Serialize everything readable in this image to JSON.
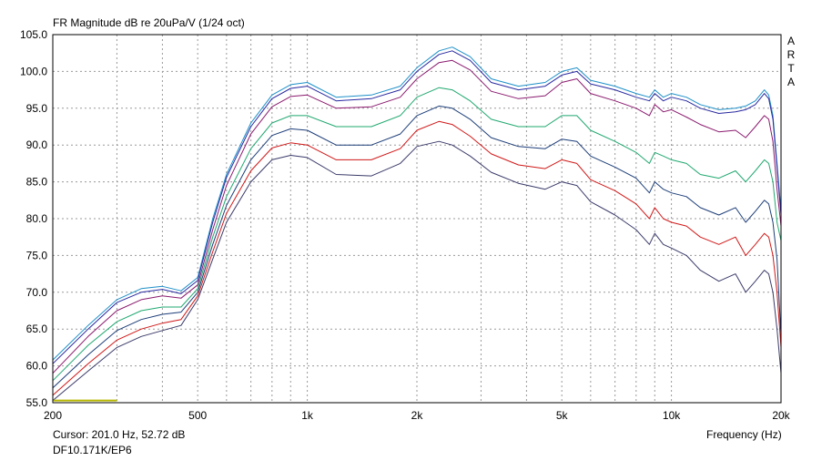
{
  "window": {
    "title": "FR Magnitude dB re 20uPa/V (1/24 oct)",
    "brand_letters": [
      "A",
      "R",
      "T",
      "A"
    ],
    "cursor_readout": "Cursor: 201.0 Hz, 52.72 dB",
    "device_label": "DF10.171K/EP6"
  },
  "chart_data": {
    "type": "line",
    "title": "FR Magnitude dB re 20uPa/V (1/24 oct)",
    "xlabel": "Frequency (Hz)",
    "ylabel": "",
    "x_scale": "log",
    "xlim": [
      200,
      20000
    ],
    "ylim": [
      55,
      105
    ],
    "grid": true,
    "x_tick_labels": [
      {
        "value": 200,
        "label": "200"
      },
      {
        "value": 500,
        "label": "500"
      },
      {
        "value": 1000,
        "label": "1k"
      },
      {
        "value": 2000,
        "label": "2k"
      },
      {
        "value": 5000,
        "label": "5k"
      },
      {
        "value": 10000,
        "label": "10k"
      },
      {
        "value": 20000,
        "label": "20k"
      }
    ],
    "x_minor_grid": [
      300,
      400,
      600,
      700,
      800,
      900,
      3000,
      4000,
      6000,
      7000,
      8000,
      9000
    ],
    "y_ticks": [
      55,
      60,
      65,
      70,
      75,
      80,
      85,
      90,
      95,
      100,
      105
    ],
    "y_tick_labels": [
      "55.0",
      "60.0",
      "65.0",
      "70.0",
      "75.0",
      "80.0",
      "85.0",
      "90.0",
      "95.0",
      "100.0",
      "105.0"
    ],
    "cursor_marker": {
      "x_start": 201,
      "x_end": 300,
      "y": 55.3,
      "color": "#b8b800"
    },
    "x": [
      200,
      250,
      300,
      350,
      400,
      450,
      500,
      550,
      600,
      700,
      800,
      900,
      1000,
      1200,
      1500,
      1800,
      2000,
      2300,
      2500,
      2800,
      3200,
      3800,
      4500,
      5000,
      5500,
      6000,
      7000,
      8000,
      8700,
      9000,
      9500,
      10000,
      11000,
      12000,
      13500,
      15000,
      16000,
      17000,
      18000,
      18500,
      19000,
      19500,
      20000
    ],
    "series": [
      {
        "color": "#1e90c8",
        "values": [
          60.8,
          65.5,
          69.0,
          70.5,
          70.8,
          70.2,
          72.0,
          80.0,
          86.0,
          93.0,
          96.8,
          98.2,
          98.5,
          96.5,
          96.8,
          98.0,
          100.5,
          102.8,
          103.3,
          102.0,
          99.0,
          98.0,
          98.5,
          100.0,
          100.5,
          98.8,
          98.0,
          97.0,
          96.5,
          97.5,
          96.5,
          97.0,
          96.5,
          95.5,
          94.8,
          95.0,
          95.3,
          96.0,
          97.5,
          96.8,
          94.0,
          87.5,
          81.0
        ]
      },
      {
        "color": "#2828a0",
        "values": [
          60.3,
          65.0,
          68.6,
          70.0,
          70.4,
          69.8,
          71.6,
          79.5,
          85.6,
          92.5,
          96.3,
          97.7,
          98.0,
          96.0,
          96.3,
          97.5,
          100.0,
          102.3,
          102.8,
          101.5,
          98.5,
          97.5,
          98.0,
          99.5,
          100.0,
          98.3,
          97.5,
          96.5,
          96.0,
          97.0,
          96.0,
          96.5,
          96.0,
          95.0,
          94.3,
          94.5,
          94.8,
          95.5,
          97.0,
          96.3,
          93.5,
          87.0,
          80.5
        ]
      },
      {
        "color": "#8a1a6e",
        "values": [
          59.0,
          64.0,
          67.5,
          69.0,
          69.5,
          69.2,
          71.0,
          78.5,
          84.5,
          91.5,
          95.2,
          96.6,
          96.8,
          95.0,
          95.2,
          96.5,
          99.0,
          101.2,
          101.5,
          100.2,
          97.3,
          96.3,
          96.7,
          98.5,
          99.0,
          97.0,
          96.0,
          95.0,
          94.0,
          95.5,
          94.5,
          94.8,
          93.8,
          92.8,
          91.8,
          92.0,
          91.0,
          92.5,
          94.0,
          93.5,
          90.5,
          84.0,
          79.0
        ]
      },
      {
        "color": "#20a870",
        "values": [
          58.0,
          62.8,
          66.0,
          67.5,
          68.0,
          68.0,
          70.5,
          77.5,
          83.0,
          89.5,
          93.0,
          94.0,
          94.0,
          92.5,
          92.5,
          94.0,
          96.5,
          97.8,
          97.5,
          96.0,
          93.5,
          92.5,
          92.5,
          94.0,
          94.0,
          92.0,
          90.5,
          89.0,
          87.5,
          89.0,
          88.5,
          88.0,
          87.5,
          86.0,
          85.5,
          86.5,
          85.0,
          86.5,
          88.0,
          87.5,
          85.0,
          79.5,
          77.0
        ]
      },
      {
        "color": "#1c3d78",
        "values": [
          57.0,
          61.5,
          64.8,
          66.3,
          67.0,
          67.3,
          70.0,
          76.5,
          81.8,
          88.0,
          91.3,
          92.2,
          92.0,
          90.0,
          90.0,
          91.5,
          94.0,
          95.3,
          95.0,
          93.5,
          91.0,
          89.8,
          89.5,
          90.8,
          90.5,
          88.5,
          87.0,
          85.5,
          83.5,
          85.0,
          84.0,
          83.5,
          83.0,
          81.5,
          80.5,
          81.5,
          79.5,
          81.0,
          82.5,
          82.0,
          79.5,
          74.5,
          64.0
        ]
      },
      {
        "color": "#d01818",
        "values": [
          56.0,
          60.3,
          63.5,
          65.0,
          65.8,
          66.3,
          69.5,
          75.5,
          80.7,
          86.5,
          89.6,
          90.3,
          90.0,
          88.0,
          88.0,
          89.5,
          92.0,
          93.2,
          92.8,
          91.2,
          88.8,
          87.3,
          86.8,
          88.0,
          87.5,
          85.3,
          83.8,
          82.0,
          80.0,
          81.5,
          80.0,
          79.5,
          79.0,
          77.5,
          76.5,
          77.5,
          75.0,
          76.5,
          78.0,
          77.5,
          75.0,
          70.0,
          62.5
        ]
      },
      {
        "color": "#3a3a6a",
        "values": [
          55.3,
          59.3,
          62.5,
          64.0,
          64.8,
          65.5,
          69.0,
          74.5,
          79.5,
          85.0,
          88.0,
          88.6,
          88.3,
          86.0,
          85.8,
          87.5,
          89.8,
          90.5,
          90.0,
          88.5,
          86.3,
          84.8,
          84.0,
          85.0,
          84.5,
          82.3,
          80.5,
          78.5,
          76.5,
          78.0,
          76.5,
          76.0,
          75.0,
          73.0,
          71.5,
          72.5,
          70.0,
          71.5,
          73.0,
          72.5,
          70.0,
          65.0,
          59.0
        ]
      }
    ]
  }
}
